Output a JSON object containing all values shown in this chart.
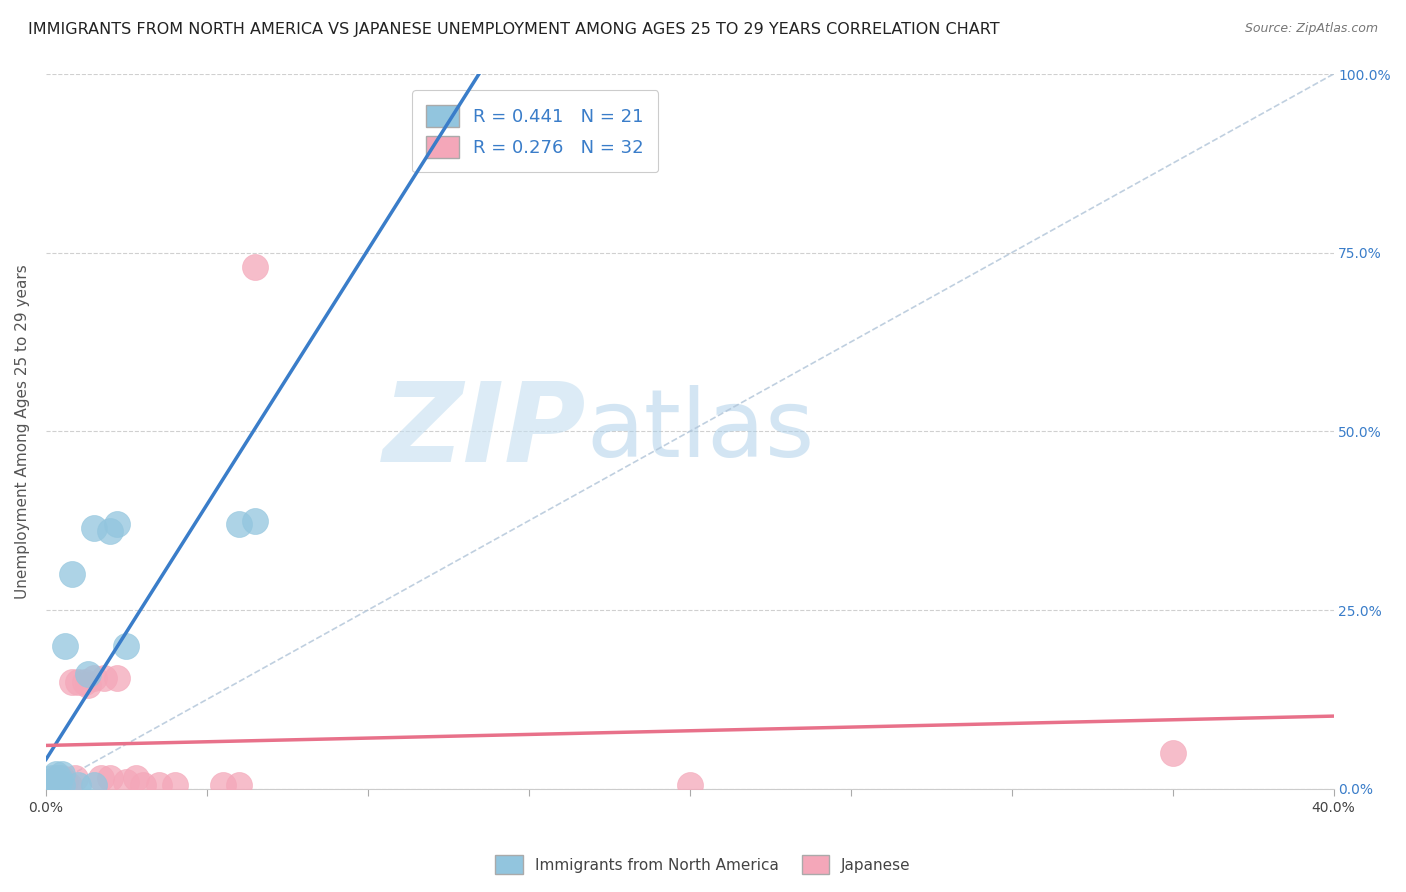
{
  "title": "IMMIGRANTS FROM NORTH AMERICA VS JAPANESE UNEMPLOYMENT AMONG AGES 25 TO 29 YEARS CORRELATION CHART",
  "source": "Source: ZipAtlas.com",
  "ylabel": "Unemployment Among Ages 25 to 29 years",
  "xlim": [
    0.0,
    0.4
  ],
  "ylim": [
    0.0,
    1.0
  ],
  "yticks": [
    0.0,
    0.25,
    0.5,
    0.75,
    1.0
  ],
  "ytick_labels": [
    "0.0%",
    "25.0%",
    "50.0%",
    "75.0%",
    "100.0%"
  ],
  "blue_color": "#92c5de",
  "pink_color": "#f4a7b9",
  "blue_line_color": "#3a7dc9",
  "pink_line_color": "#e8718a",
  "ref_line_color": "#b0c4d8",
  "R_blue": 0.441,
  "N_blue": 21,
  "R_pink": 0.276,
  "N_pink": 32,
  "legend_label_blue": "Immigrants from North America",
  "legend_label_pink": "Japanese",
  "watermark_zip": "ZIP",
  "watermark_atlas": "atlas",
  "blue_scatter_x": [
    0.001,
    0.002,
    0.002,
    0.003,
    0.003,
    0.004,
    0.004,
    0.005,
    0.005,
    0.006,
    0.008,
    0.01,
    0.013,
    0.015,
    0.015,
    0.02,
    0.022,
    0.025,
    0.06,
    0.065,
    0.12
  ],
  "blue_scatter_y": [
    0.01,
    0.005,
    0.015,
    0.01,
    0.02,
    0.01,
    0.015,
    0.005,
    0.02,
    0.2,
    0.3,
    0.005,
    0.16,
    0.005,
    0.365,
    0.36,
    0.37,
    0.2,
    0.37,
    0.375,
    0.95
  ],
  "pink_scatter_x": [
    0.001,
    0.001,
    0.002,
    0.002,
    0.003,
    0.003,
    0.004,
    0.004,
    0.005,
    0.005,
    0.006,
    0.007,
    0.008,
    0.009,
    0.01,
    0.012,
    0.013,
    0.015,
    0.017,
    0.018,
    0.02,
    0.022,
    0.025,
    0.028,
    0.03,
    0.035,
    0.04,
    0.055,
    0.06,
    0.065,
    0.2,
    0.35
  ],
  "pink_scatter_y": [
    0.005,
    0.01,
    0.005,
    0.01,
    0.005,
    0.015,
    0.01,
    0.015,
    0.005,
    0.015,
    0.01,
    0.005,
    0.15,
    0.015,
    0.15,
    0.15,
    0.145,
    0.155,
    0.015,
    0.155,
    0.015,
    0.155,
    0.01,
    0.015,
    0.005,
    0.005,
    0.005,
    0.005,
    0.005,
    0.73,
    0.005,
    0.05
  ],
  "title_fontsize": 11.5,
  "axis_label_fontsize": 11,
  "tick_fontsize": 10,
  "legend_fontsize": 13
}
